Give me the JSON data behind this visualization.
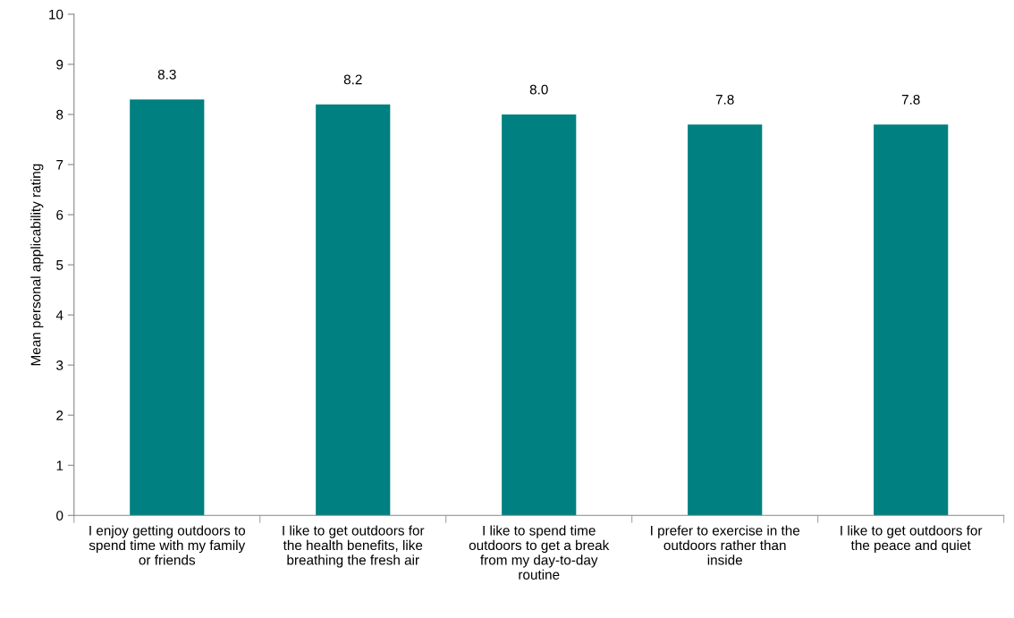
{
  "chart_data": {
    "type": "bar",
    "ylabel": "Mean personal applicability rating",
    "categories": [
      "I enjoy getting outdoors to\nspend time with my family\nor friends",
      "I like to get outdoors for\nthe health benefits, like\nbreathing the fresh air",
      "I like to spend time\noutdoors to get a break\nfrom my day-to-day\nroutine",
      "I prefer to exercise in the\noutdoors rather than\ninside",
      "I like to get outdoors for\nthe peace and quiet"
    ],
    "values": [
      8.3,
      8.2,
      8.0,
      7.8,
      7.8
    ],
    "value_labels": [
      "8.3",
      "8.2",
      "8.0",
      "7.8",
      "7.8"
    ],
    "color": "#008080",
    "ylim": [
      0,
      10
    ],
    "yticks": [
      0,
      1,
      2,
      3,
      4,
      5,
      6,
      7,
      8,
      9,
      10
    ],
    "grid": false,
    "legend": false
  }
}
